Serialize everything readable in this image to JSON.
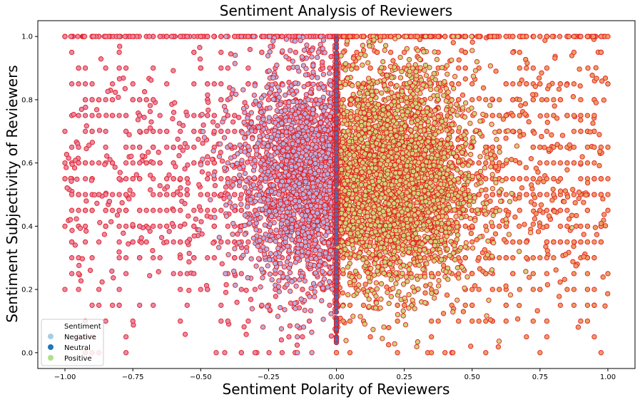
{
  "chart_data": {
    "type": "scatter",
    "title": "Sentiment Analysis of Reviewers",
    "xlabel": "Sentiment Polarity of Reviewers",
    "ylabel": "Sentiment Subjectivity of Reviewers",
    "xlim": [
      -1.1,
      1.1
    ],
    "ylim": [
      -0.05,
      1.05
    ],
    "xticks": [
      -1.0,
      -0.75,
      -0.5,
      -0.25,
      0.0,
      0.25,
      0.5,
      0.75,
      1.0
    ],
    "xtick_labels": [
      "−1.00",
      "−0.75",
      "−0.50",
      "−0.25",
      "0.00",
      "0.25",
      "0.50",
      "0.75",
      "1.00"
    ],
    "yticks": [
      0.0,
      0.2,
      0.4,
      0.6,
      0.8,
      1.0
    ],
    "ytick_labels": [
      "0.0",
      "0.2",
      "0.4",
      "0.6",
      "0.8",
      "1.0"
    ],
    "grid": false,
    "legend": {
      "position": "lower-left",
      "title": "Sentiment",
      "entries": [
        {
          "label": "Negative",
          "color": "#a6cee3"
        },
        {
          "label": "Neutral",
          "color": "#1f78b4"
        },
        {
          "label": "Positive",
          "color": "#b2df8a"
        }
      ]
    },
    "series": [
      {
        "name": "Negative",
        "fill_color": "#b3b3e0",
        "outer_fill_color": "#e58aa8",
        "edge_color": "#e8191c",
        "x_range": [
          -1.0,
          0.0
        ],
        "y_range": [
          0.0,
          1.0
        ],
        "density_center": [
          -0.1,
          0.55
        ]
      },
      {
        "name": "Neutral",
        "fill_color": "#4a6fb5",
        "edge_color": "#e8191c",
        "x_values": [
          0.0
        ],
        "y_range": [
          0.03,
          1.0
        ]
      },
      {
        "name": "Positive",
        "fill_color": "#cbd67d",
        "outer_fill_color": "#e9a065",
        "edge_color": "#e8191c",
        "x_range": [
          0.0,
          1.0
        ],
        "y_range": [
          0.0,
          1.0
        ],
        "density_center": [
          0.2,
          0.55
        ]
      }
    ]
  }
}
